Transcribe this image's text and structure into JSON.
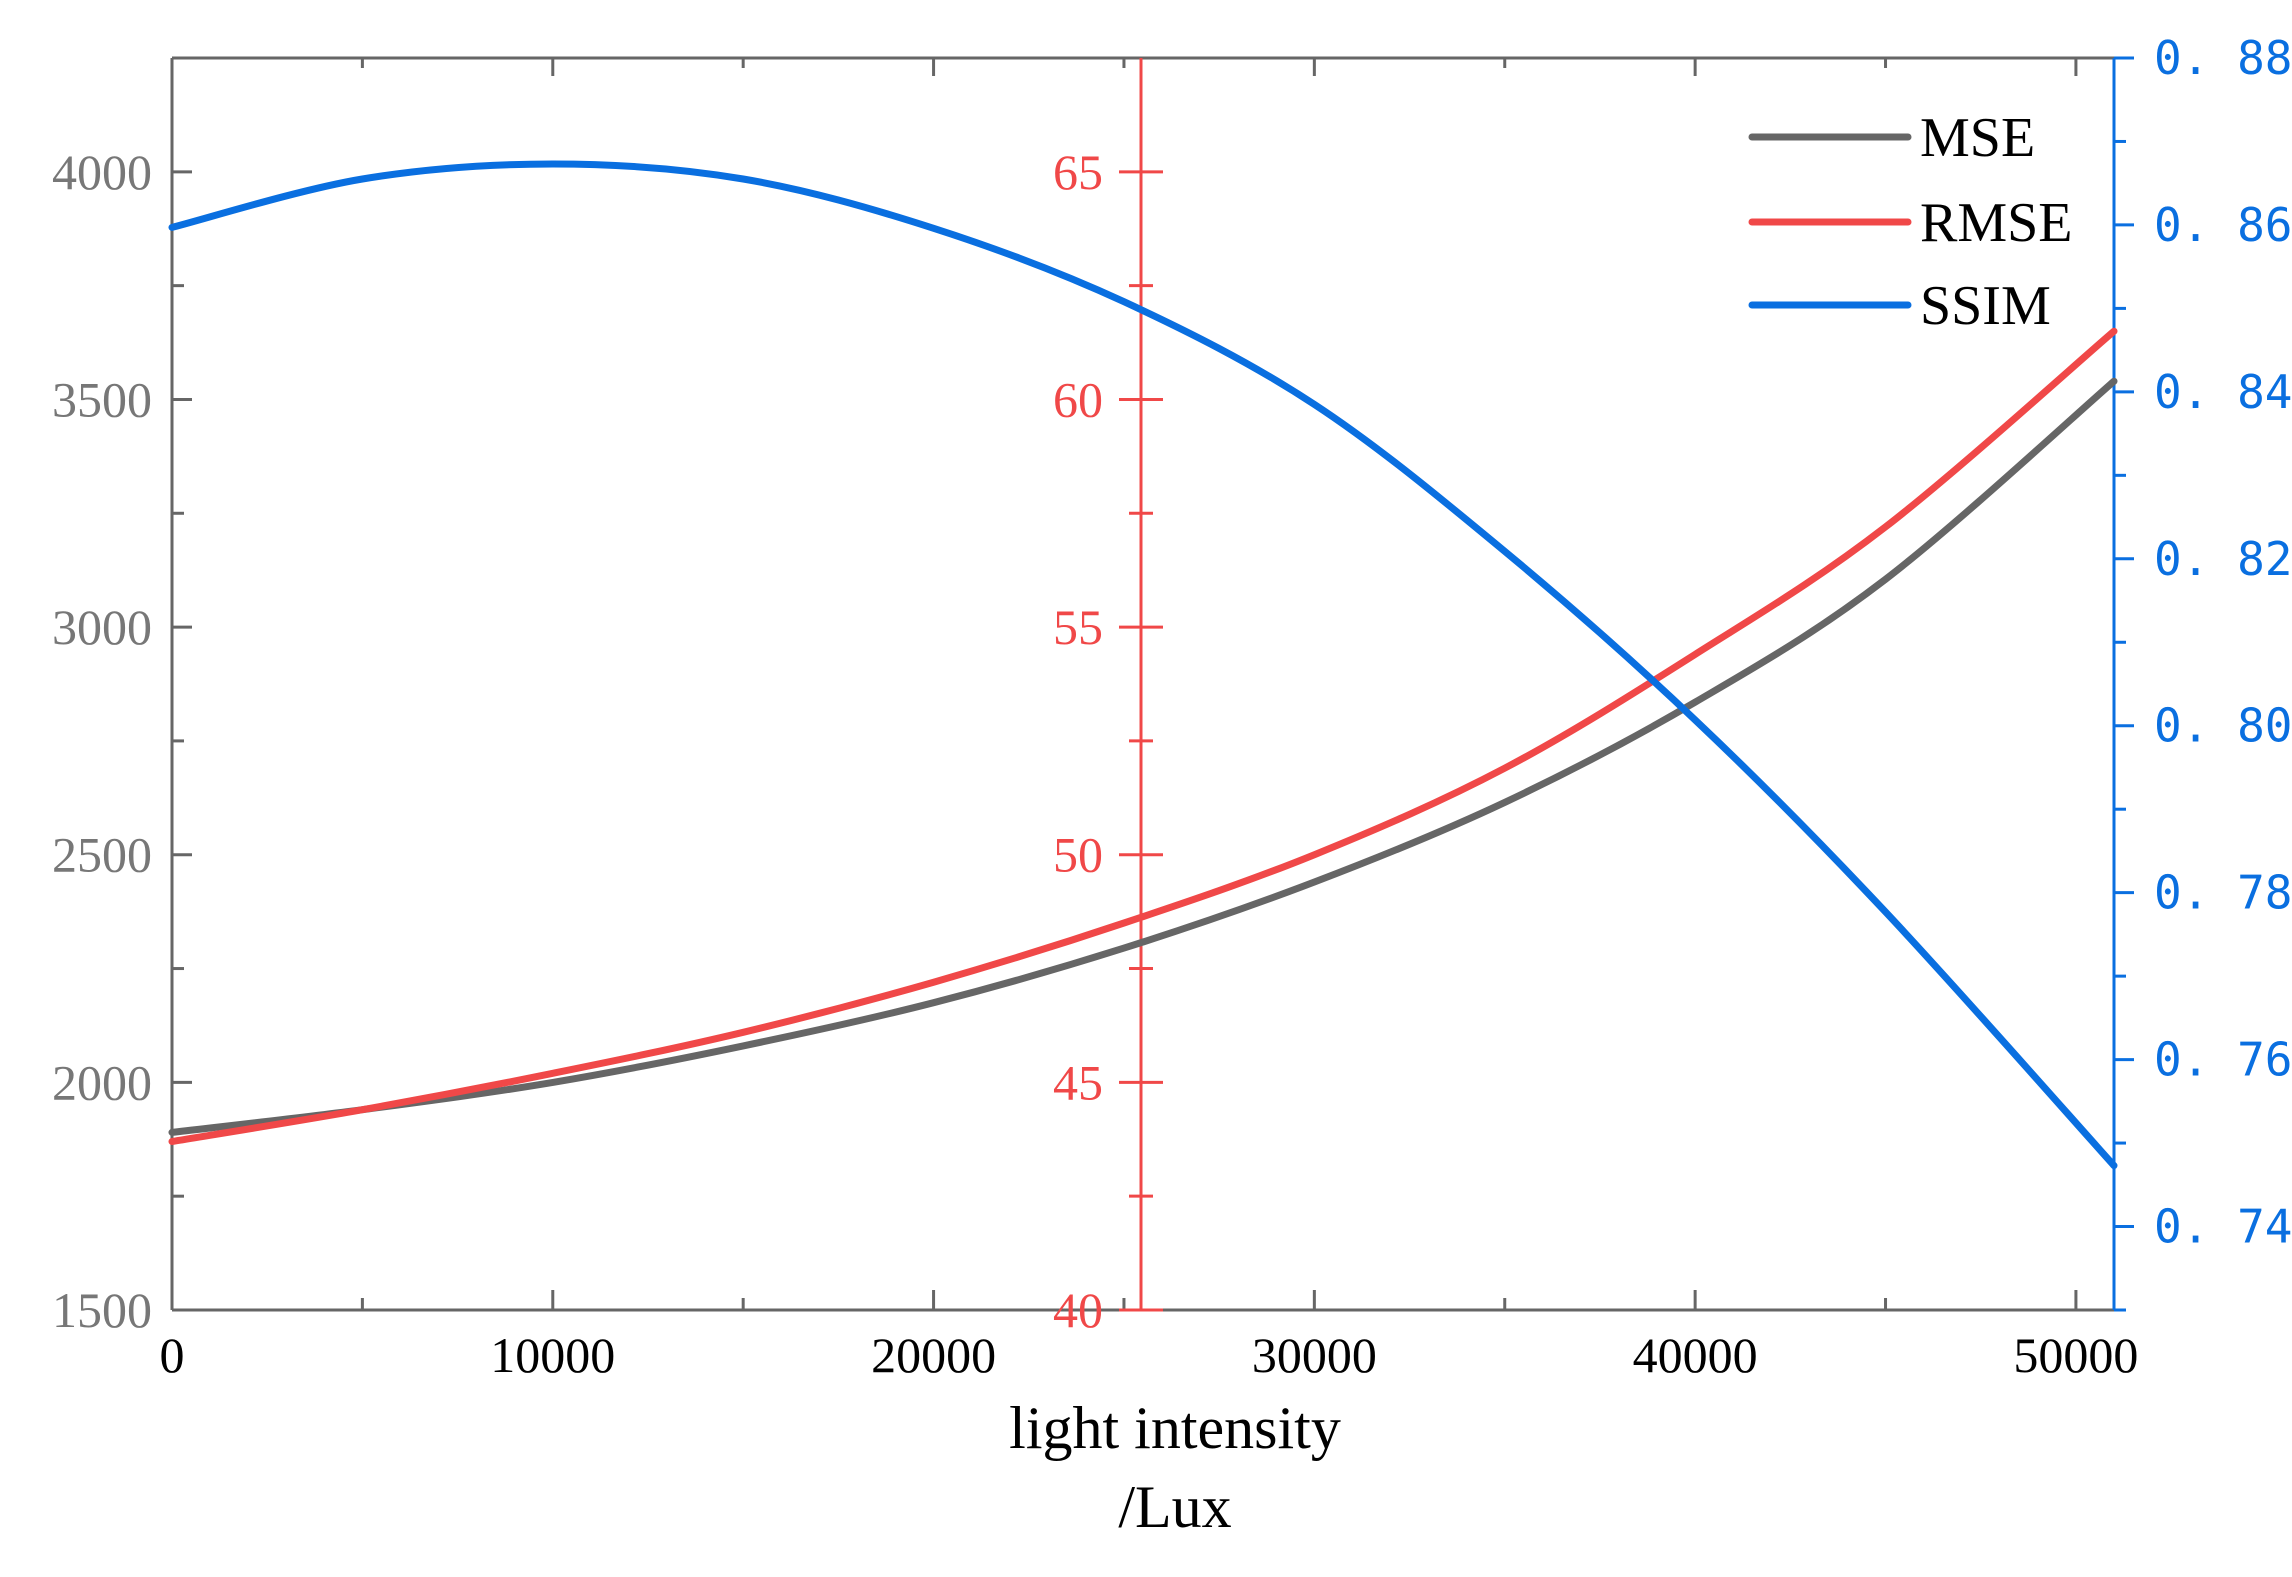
{
  "chart_data": {
    "type": "line",
    "title": "",
    "xlabel_line1": "light intensity",
    "xlabel_line2": "/Lux",
    "xlim": [
      0,
      51000
    ],
    "x_ticks": [
      0,
      10000,
      20000,
      30000,
      40000,
      50000
    ],
    "colors": {
      "mse": "#666666",
      "rmse": "#f04848",
      "ssim": "#0a6fe0"
    },
    "axes": [
      {
        "id": "mse",
        "side": "left",
        "ylim": [
          1500,
          4250
        ],
        "ticks": [
          1500,
          2000,
          2500,
          3000,
          3500,
          4000
        ],
        "color": "#666666"
      },
      {
        "id": "rmse",
        "side": "middle",
        "ylim": [
          40,
          67.5
        ],
        "ticks": [
          40,
          45,
          50,
          55,
          60,
          65
        ],
        "color": "#f04848"
      },
      {
        "id": "ssim",
        "side": "right",
        "ylim": [
          0.73,
          0.88
        ],
        "ticks": [
          0.74,
          0.76,
          0.78,
          0.8,
          0.82,
          0.84,
          0.86,
          0.88
        ],
        "tick_labels": [
          "0. 74",
          "0. 76",
          "0. 78",
          "0. 80",
          "0. 82",
          "0. 84",
          "0. 86",
          "0. 88"
        ],
        "color": "#0a6fe0"
      }
    ],
    "x": [
      0,
      5000,
      10000,
      15000,
      20000,
      25000,
      30000,
      35000,
      40000,
      45000,
      51000
    ],
    "series": [
      {
        "name": "MSE",
        "axis": "mse",
        "values": [
          1890,
          1940,
          2000,
          2080,
          2175,
          2295,
          2440,
          2615,
          2835,
          3105,
          3540
        ]
      },
      {
        "name": "RMSE",
        "axis": "rmse",
        "values": [
          43.7,
          44.4,
          45.2,
          46.1,
          47.2,
          48.5,
          50.0,
          51.9,
          54.4,
          57.2,
          61.5
        ]
      },
      {
        "name": "SSIM",
        "axis": "ssim",
        "values": [
          0.8597,
          0.8655,
          0.8673,
          0.8655,
          0.8596,
          0.8508,
          0.8385,
          0.8209,
          0.8007,
          0.7777,
          0.7473
        ]
      }
    ],
    "legend": [
      "MSE",
      "RMSE",
      "SSIM"
    ],
    "legend_position": "top-right",
    "grid": false
  }
}
